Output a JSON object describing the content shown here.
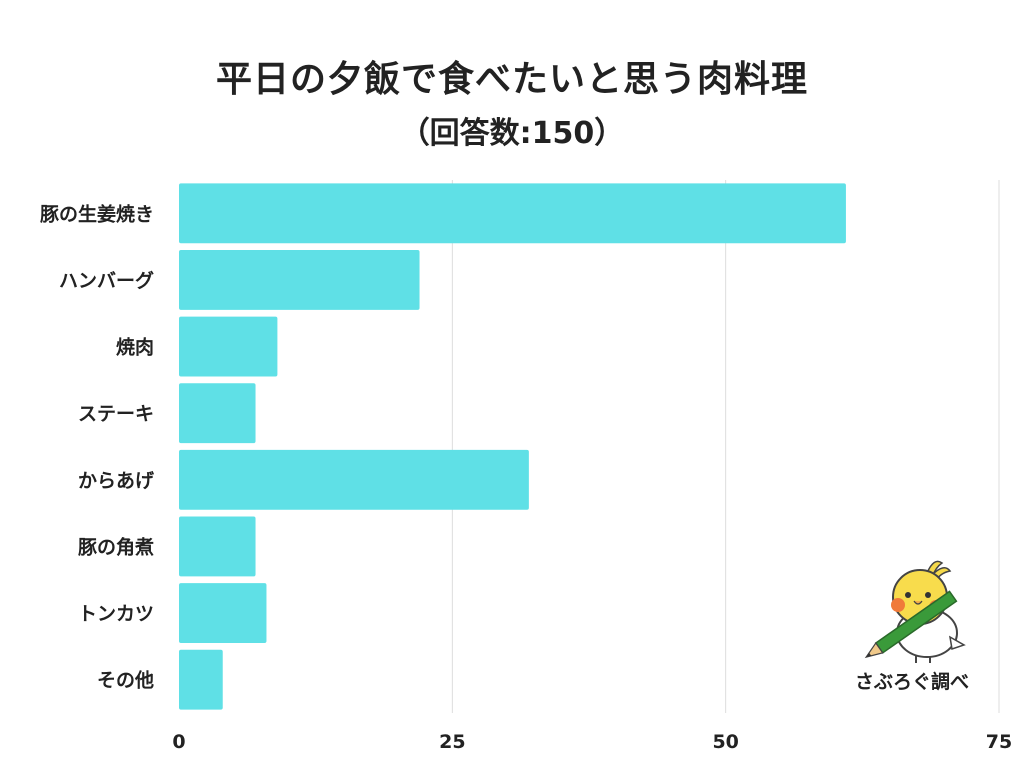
{
  "title": "平日の夕飯で食べたいと思う肉料理",
  "subtitle": "（回答数:150）",
  "badge": {
    "text": "さぶろぐ調べ",
    "icon": "bird-with-pencil-icon"
  },
  "colors": {
    "bar": "#5fe0e6",
    "grid": "#dddddd",
    "text": "#222222"
  },
  "chart_data": {
    "type": "bar",
    "orientation": "horizontal",
    "categories": [
      "豚の生姜焼き",
      "ハンバーグ",
      "焼肉",
      "ステーキ",
      "からあげ",
      "豚の角煮",
      "トンカツ",
      "その他"
    ],
    "values": [
      61,
      22,
      9,
      7,
      32,
      7,
      8,
      4
    ],
    "xlim": [
      0,
      75
    ],
    "xticks": [
      0,
      25,
      50,
      75
    ],
    "grid": true,
    "legend": false
  }
}
